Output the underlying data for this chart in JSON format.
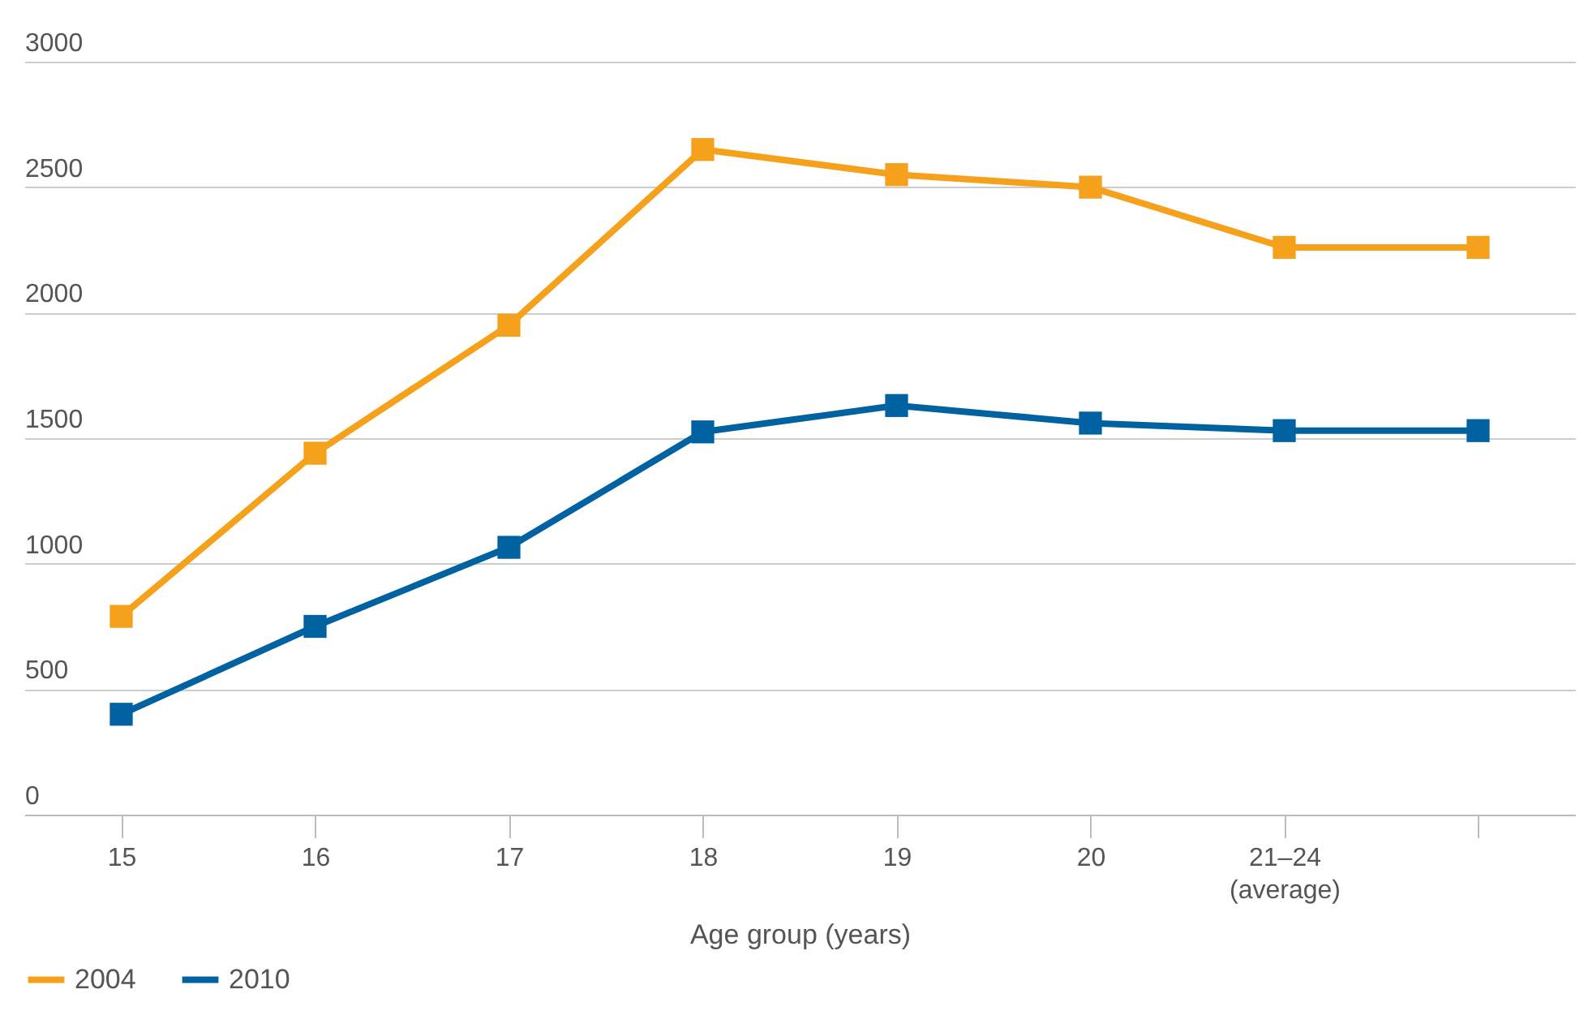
{
  "chart_data": {
    "type": "line",
    "xlabel": "Age group (years)",
    "categories": [
      "15",
      "16",
      "17",
      "18",
      "19",
      "20",
      "21–24\n(average)",
      null
    ],
    "series": [
      {
        "name": "2004",
        "color": "#f5a11c",
        "values": [
          790,
          1440,
          1950,
          2650,
          2550,
          2500,
          2260,
          2260
        ]
      },
      {
        "name": "2010",
        "color": "#0062a0",
        "values": [
          400,
          750,
          1065,
          1525,
          1630,
          1560,
          1530,
          1530
        ]
      }
    ],
    "ylim": [
      0,
      3000
    ],
    "yticks": [
      0,
      500,
      1000,
      1500,
      2000,
      2500,
      3000
    ],
    "grid": "y",
    "legend": "bottom",
    "marker": "square",
    "line_style": "solid"
  }
}
